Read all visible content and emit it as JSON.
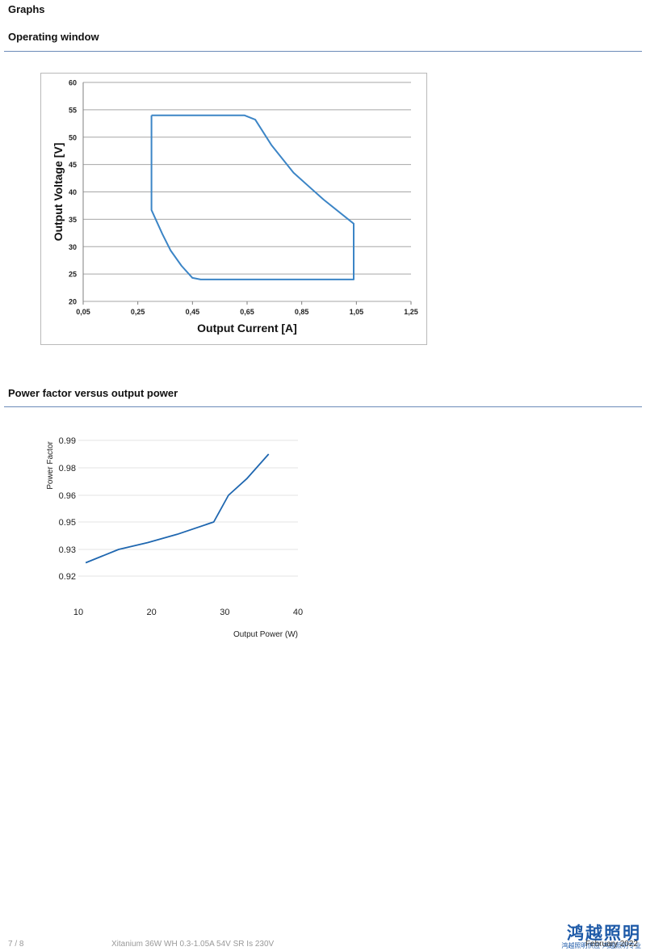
{
  "page": {
    "heading": "Graphs",
    "sections": [
      {
        "title": "Operating window"
      },
      {
        "title": "Power factor versus output power"
      }
    ]
  },
  "chart_data": [
    {
      "type": "line",
      "xlabel": "Output Current [A]",
      "ylabel": "Output Voltage [V]",
      "xlim": [
        0.05,
        1.25
      ],
      "ylim": [
        20,
        60
      ],
      "xticks": [
        "0,05",
        "0,25",
        "0,45",
        "0,65",
        "0,85",
        "1,05",
        "1,25"
      ],
      "yticks": [
        "20",
        "25",
        "30",
        "35",
        "40",
        "45",
        "50",
        "55",
        "60"
      ],
      "grid": "horizontal",
      "color": "#3c85c6",
      "series": [
        {
          "x": [
            0.3,
            0.3,
            0.34,
            0.37,
            0.41,
            0.45,
            0.48,
            1.04,
            1.04,
            0.93,
            0.82,
            0.74,
            0.68,
            0.64,
            0.3
          ],
          "y": [
            54,
            36.7,
            32.3,
            29.3,
            26.5,
            24.3,
            24,
            24,
            34.2,
            38.6,
            43.5,
            48.5,
            53.2,
            54,
            54
          ]
        }
      ]
    },
    {
      "type": "line",
      "xlabel": "Output Power (W)",
      "ylabel": "Power Factor",
      "xlim": [
        10,
        40
      ],
      "yticks": [
        "0.99",
        "0.98",
        "0.96",
        "0.95",
        "0.93",
        "0.92"
      ],
      "xticks": [
        "10",
        "20",
        "30",
        "40"
      ],
      "grid": "horizontal",
      "color": "#1f67b0",
      "series": [
        {
          "x": [
            11,
            15.5,
            19.5,
            23.5,
            28.5,
            30.5,
            33,
            36
          ],
          "y": [
            0.925,
            0.93,
            0.935,
            0.941,
            0.95,
            0.96,
            0.972,
            0.985
          ]
        }
      ]
    }
  ],
  "footer": {
    "page_number": "7 / 8",
    "product": "Xitanium 36W WH 0.3-1.05A 54V SR Is 230V",
    "date": "February 2022",
    "logo_text": "鸿越照明",
    "logo_sub": "鸿越照明供应·鸿越照明专业"
  }
}
